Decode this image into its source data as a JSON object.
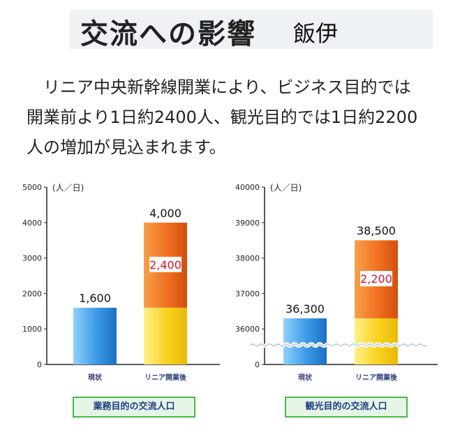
{
  "header": {
    "title": "交流への影響",
    "subtitle": "飯伊"
  },
  "description": [
    "リニア中央新幹線開業により、ビジネス目的では",
    "開業前より1日約2400人、観光目的では1日約2200",
    "人の増加が見込まれます。"
  ],
  "colors": {
    "current": "#3a9ae6",
    "base": "#f8d21c",
    "increase": "#f07020",
    "caption_border": "#45b84a",
    "caption_text": "#1f3d85",
    "increase_label": "#d8102c"
  },
  "chart_data": [
    {
      "type": "bar",
      "unit": "(人／日)",
      "categories": [
        "現状",
        "リニア開業後"
      ],
      "ylim": [
        0,
        5000
      ],
      "yticks": [
        "0",
        "1000",
        "2000",
        "3000",
        "4000",
        "5000"
      ],
      "current": 1600,
      "base_after": 1600,
      "increase": 2400,
      "total_after": 4000,
      "labels": {
        "current": "1,600",
        "total": "4,000",
        "increase": "2,400"
      },
      "caption": "業務目的の交流人口"
    },
    {
      "type": "bar",
      "unit": "(人／日)",
      "categories": [
        "現状",
        "リニア開業後"
      ],
      "ylim": [
        35000,
        40000
      ],
      "axis_break": true,
      "yticks": [
        "0",
        "36000",
        "37000",
        "38000",
        "39000",
        "40000"
      ],
      "current": 36300,
      "base_after": 36300,
      "increase": 2200,
      "total_after": 38500,
      "labels": {
        "current": "36,300",
        "total": "38,500",
        "increase": "2,200"
      },
      "caption": "観光目的の交流人口"
    }
  ]
}
